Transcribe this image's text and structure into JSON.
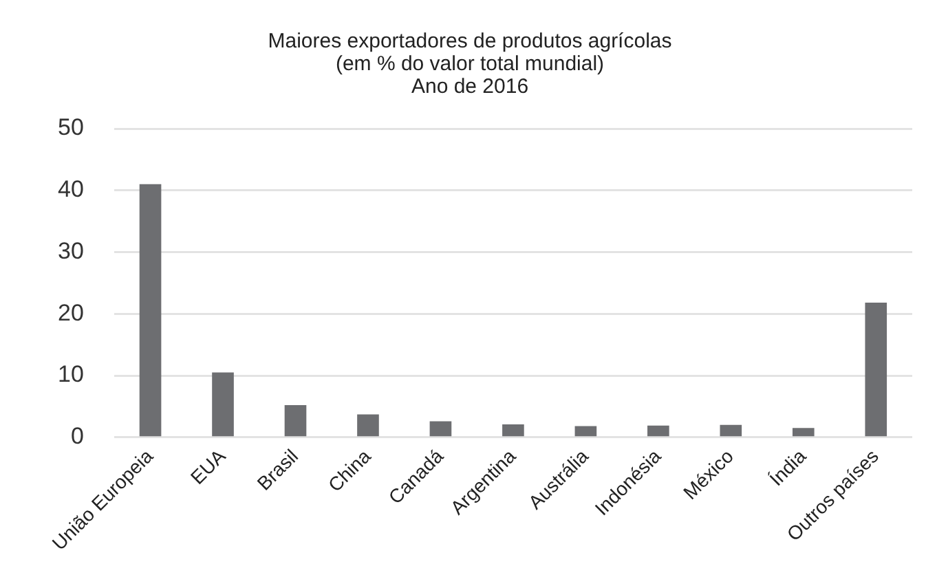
{
  "chart_data": {
    "type": "bar",
    "title": [
      "Maiores exportadores de produtos agrícolas",
      "(em % do valor total mundial)",
      "Ano de 2016"
    ],
    "categories": [
      "União Europeia",
      "EUA",
      "Brasil",
      "China",
      "Canadá",
      "Argentina",
      "Austrália",
      "Indonésia",
      "México",
      "Índia",
      "Outros países"
    ],
    "values": [
      41,
      10.5,
      5.2,
      3.7,
      2.6,
      2.1,
      1.8,
      1.9,
      2.0,
      1.5,
      21.8
    ],
    "color": "#6d6e71",
    "ylim": [
      0,
      50
    ],
    "yticks": [
      0,
      10,
      20,
      30,
      40,
      50
    ],
    "grid": "y",
    "legend": false
  }
}
